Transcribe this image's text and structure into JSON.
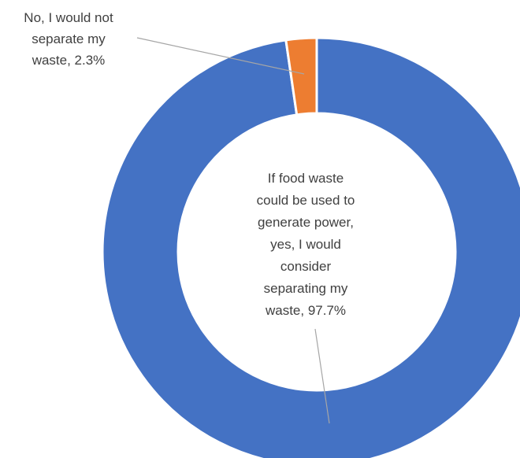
{
  "chart_data": {
    "type": "pie",
    "donut": true,
    "title": "",
    "start_angle_deg": 0,
    "direction": "clockwise",
    "slices": [
      {
        "label": "If food waste could be used to generate power, yes, I would consider separating my waste",
        "value": 97.7,
        "value_label": "97.7%",
        "label_lines": [
          "If food waste",
          "could be used to",
          "generate power,",
          "yes, I would",
          "consider",
          "separating my",
          "waste, 97.7%"
        ],
        "color": "#4472C4"
      },
      {
        "label": "No, I would not separate my waste",
        "value": 2.3,
        "value_label": "2.3%",
        "label_lines": [
          "No, I would not",
          "separate my",
          "waste, 2.3%"
        ],
        "color": "#ED7D31"
      }
    ],
    "legend": "none",
    "data_labels": "category name and percentage, with leader lines"
  }
}
